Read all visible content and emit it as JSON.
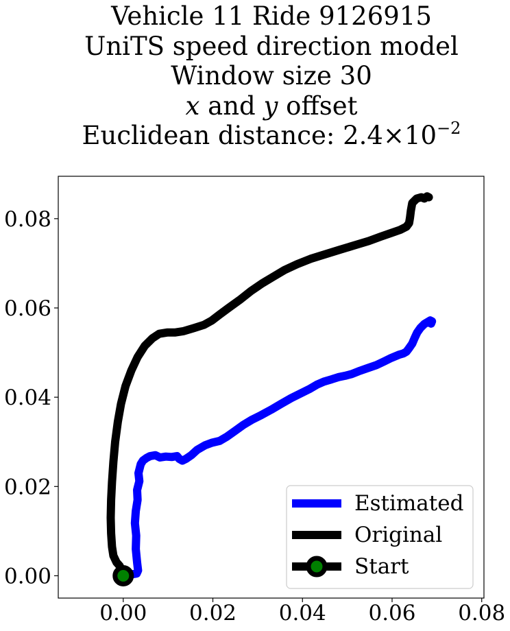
{
  "title_lines": [
    "Vehicle 11 Ride 9126915",
    "UniTS speed direction model",
    "Window size 30"
  ],
  "title_offset_line": {
    "x": "x",
    "and": " and ",
    "y": "y",
    "rest": " offset"
  },
  "title_distance_line": {
    "prefix": "Euclidean distance: ",
    "mantissa": "2.4",
    "times": "×",
    "base": "10",
    "exponent": "−2"
  },
  "chart_data": {
    "type": "line",
    "title": "Vehicle 11 Ride 9126915 UniTS speed direction model Window size 30 x and y offset Euclidean distance: 2.4×10^-2",
    "xlabel": "",
    "ylabel": "",
    "xlim": [
      -0.0145,
      0.0805
    ],
    "ylim": [
      -0.005,
      0.0895
    ],
    "x_ticks": [
      0.0,
      0.02,
      0.04,
      0.06,
      0.08
    ],
    "x_tick_labels": [
      "0.00",
      "0.02",
      "0.04",
      "0.06",
      "0.08"
    ],
    "y_ticks": [
      0.0,
      0.02,
      0.04,
      0.06,
      0.08
    ],
    "y_tick_labels": [
      "0.00",
      "0.02",
      "0.04",
      "0.06",
      "0.08"
    ],
    "grid": false,
    "legend_position": "lower-right",
    "series": [
      {
        "name": "Estimated",
        "color": "#0000ff",
        "x": [
          0.0,
          0.0012,
          0.003,
          0.0033,
          0.0031,
          0.0028,
          0.0029,
          0.0026,
          0.0028,
          0.0032,
          0.0031,
          0.0036,
          0.0034,
          0.0039,
          0.0044,
          0.0052,
          0.006,
          0.0072,
          0.0082,
          0.0095,
          0.0108,
          0.012,
          0.0125,
          0.0132,
          0.014,
          0.0152,
          0.0165,
          0.0182,
          0.0198,
          0.0215,
          0.0232,
          0.025,
          0.0268,
          0.0288,
          0.0308,
          0.033,
          0.0352,
          0.0375,
          0.0395,
          0.0415,
          0.0432,
          0.0448,
          0.0465,
          0.048,
          0.0495,
          0.051,
          0.0525,
          0.0545,
          0.0565,
          0.0582,
          0.0598,
          0.0615,
          0.0625,
          0.0632,
          0.0638,
          0.0645,
          0.065,
          0.0656,
          0.0663,
          0.0672,
          0.068,
          0.0685,
          0.0689,
          0.0687,
          0.0682
        ],
        "y": [
          0.0,
          0.0002,
          0.0005,
          0.0012,
          0.003,
          0.006,
          0.009,
          0.0118,
          0.0145,
          0.017,
          0.0192,
          0.0212,
          0.023,
          0.025,
          0.0258,
          0.0264,
          0.0268,
          0.027,
          0.0265,
          0.0267,
          0.0266,
          0.0268,
          0.0262,
          0.0258,
          0.0262,
          0.027,
          0.0282,
          0.0292,
          0.0298,
          0.0302,
          0.0312,
          0.0325,
          0.0338,
          0.035,
          0.036,
          0.0372,
          0.0385,
          0.0398,
          0.0408,
          0.0418,
          0.0428,
          0.0435,
          0.044,
          0.0445,
          0.0448,
          0.0452,
          0.0458,
          0.0465,
          0.0472,
          0.048,
          0.0488,
          0.0495,
          0.0498,
          0.0502,
          0.051,
          0.052,
          0.0532,
          0.0545,
          0.0555,
          0.0564,
          0.0569,
          0.0572,
          0.057,
          0.0565,
          0.0568
        ]
      },
      {
        "name": "Original",
        "color": "#000000",
        "x": [
          0.0,
          -0.0003,
          -0.0008,
          -0.0015,
          -0.0022,
          -0.0025,
          -0.0027,
          -0.0028,
          -0.0027,
          -0.0025,
          -0.0022,
          -0.0018,
          -0.0012,
          -0.0005,
          0.0005,
          0.0018,
          0.0032,
          0.0048,
          0.0065,
          0.008,
          0.0098,
          0.0115,
          0.0135,
          0.0158,
          0.018,
          0.0198,
          0.0215,
          0.0235,
          0.026,
          0.0285,
          0.031,
          0.0335,
          0.036,
          0.0388,
          0.0418,
          0.045,
          0.0482,
          0.0515,
          0.0548,
          0.0575,
          0.0598,
          0.0618,
          0.0632,
          0.0638,
          0.064,
          0.0642,
          0.0645,
          0.0655,
          0.0665,
          0.0672,
          0.0678,
          0.0682
        ],
        "y": [
          0.0,
          0.0012,
          0.0022,
          0.003,
          0.0045,
          0.0065,
          0.0095,
          0.013,
          0.017,
          0.021,
          0.0255,
          0.03,
          0.0345,
          0.0385,
          0.0425,
          0.046,
          0.049,
          0.0515,
          0.0532,
          0.0542,
          0.0545,
          0.0545,
          0.0548,
          0.0555,
          0.0562,
          0.0572,
          0.0585,
          0.06,
          0.0618,
          0.0638,
          0.0655,
          0.067,
          0.0685,
          0.0698,
          0.071,
          0.072,
          0.073,
          0.074,
          0.075,
          0.076,
          0.0768,
          0.0775,
          0.0782,
          0.079,
          0.0802,
          0.0818,
          0.0835,
          0.0845,
          0.0848,
          0.0845,
          0.085,
          0.0848
        ]
      }
    ],
    "start_marker": {
      "name": "Start",
      "x": 0.0,
      "y": 0.0,
      "fill": "#008000",
      "edge": "#000000"
    }
  }
}
